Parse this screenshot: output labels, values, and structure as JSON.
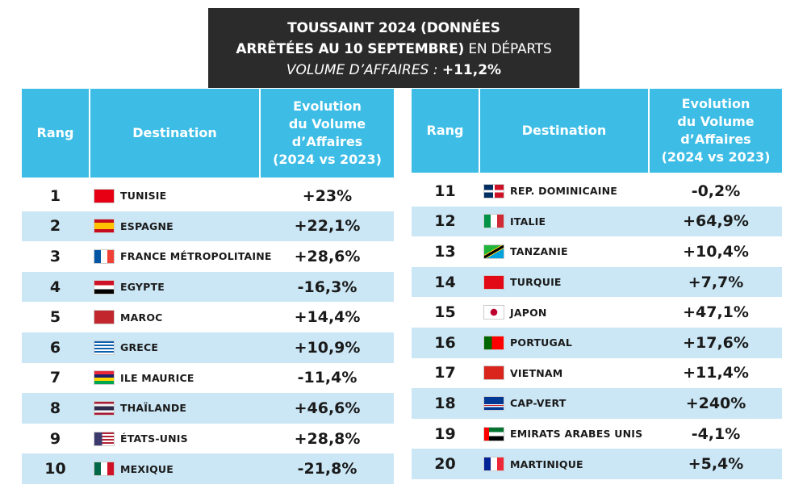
{
  "title": {
    "line1": "TOUSSAINT 2024 (DONNÉES",
    "line2_bold": "ARRÊTÉES AU 10 SEPTEMBRE)",
    "line2_rest": " EN DÉPARTS",
    "line3_label": "VOLUME D’AFFAIRES : ",
    "line3_value": "+11,2%"
  },
  "headers": {
    "rank": "Rang",
    "destination": "Destination",
    "evolution": [
      "Evolution",
      "du Volume",
      "d’Affaires",
      "(2024 vs 2023)"
    ]
  },
  "colors": {
    "header": "#3dbde6",
    "alt_row": "#cbe7f5",
    "title_bg": "#2b2b2b"
  },
  "rows": [
    {
      "rank": "1",
      "flag": "tunisia-flag-icon",
      "name": "TUNISIE",
      "value": "+23%"
    },
    {
      "rank": "2",
      "flag": "spain-flag-icon",
      "name": "ESPAGNE",
      "value": "+22,1%"
    },
    {
      "rank": "3",
      "flag": "france-flag-icon",
      "name": "FRANCE MÉTROPOLITAINE",
      "value": "+28,6%"
    },
    {
      "rank": "4",
      "flag": "egypt-flag-icon",
      "name": "EGYPTE",
      "value": "-16,3%"
    },
    {
      "rank": "5",
      "flag": "morocco-flag-icon",
      "name": "MAROC",
      "value": "+14,4%"
    },
    {
      "rank": "6",
      "flag": "greece-flag-icon",
      "name": "GRECE",
      "value": "+10,9%"
    },
    {
      "rank": "7",
      "flag": "mauritius-flag-icon",
      "name": "ILE MAURICE",
      "value": "-11,4%"
    },
    {
      "rank": "8",
      "flag": "thailand-flag-icon",
      "name": "THAÏLANDE",
      "value": "+46,6%"
    },
    {
      "rank": "9",
      "flag": "usa-flag-icon",
      "name": "ÉTATS-UNIS",
      "value": "+28,8%"
    },
    {
      "rank": "10",
      "flag": "mexico-flag-icon",
      "name": "MEXIQUE",
      "value": "-21,8%"
    },
    {
      "rank": "11",
      "flag": "dominican-republic-flag-icon",
      "name": "REP. DOMINICAINE",
      "value": "-0,2%"
    },
    {
      "rank": "12",
      "flag": "italy-flag-icon",
      "name": "ITALIE",
      "value": "+64,9%"
    },
    {
      "rank": "13",
      "flag": "tanzania-flag-icon",
      "name": "TANZANIE",
      "value": "+10,4%"
    },
    {
      "rank": "14",
      "flag": "turkey-flag-icon",
      "name": "TURQUIE",
      "value": "+7,7%"
    },
    {
      "rank": "15",
      "flag": "japan-flag-icon",
      "name": "JAPON",
      "value": "+47,1%"
    },
    {
      "rank": "16",
      "flag": "portugal-flag-icon",
      "name": "PORTUGAL",
      "value": "+17,6%"
    },
    {
      "rank": "17",
      "flag": "vietnam-flag-icon",
      "name": "VIETNAM",
      "value": "+11,4%"
    },
    {
      "rank": "18",
      "flag": "cape-verde-flag-icon",
      "name": "CAP-VERT",
      "value": "+240%"
    },
    {
      "rank": "19",
      "flag": "uae-flag-icon",
      "name": "EMIRATS ARABES UNIS",
      "value": "-4,1%"
    },
    {
      "rank": "20",
      "flag": "martinique-flag-icon",
      "name": "MARTINIQUE",
      "value": "+5,4%"
    }
  ]
}
